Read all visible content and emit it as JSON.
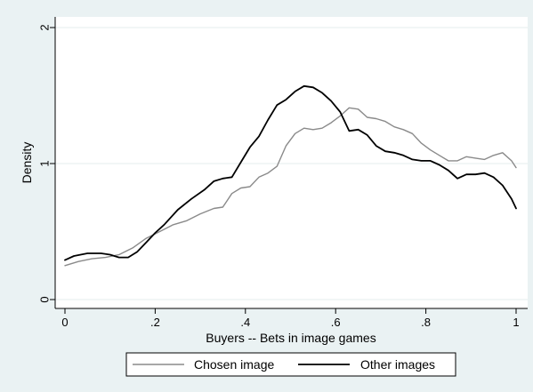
{
  "chart_data": {
    "type": "line",
    "xlabel": "Buyers -- Bets in image games",
    "ylabel": "Density",
    "xlim": [
      0,
      1
    ],
    "ylim": [
      0,
      2
    ],
    "x_ticks": [
      {
        "value": 0,
        "label": "0"
      },
      {
        "value": 0.2,
        "label": ".2"
      },
      {
        "value": 0.4,
        "label": ".4"
      },
      {
        "value": 0.6,
        "label": ".6"
      },
      {
        "value": 0.8,
        "label": ".8"
      },
      {
        "value": 1,
        "label": "1"
      }
    ],
    "y_ticks": [
      {
        "value": 0,
        "label": "0"
      },
      {
        "value": 1,
        "label": "1"
      },
      {
        "value": 2,
        "label": "2"
      }
    ],
    "grid": "horizontal",
    "legend_position": "bottom",
    "series": [
      {
        "name": "Chosen image",
        "color": "#8a8a8a",
        "x": [
          0,
          0.03,
          0.06,
          0.09,
          0.12,
          0.15,
          0.18,
          0.21,
          0.24,
          0.27,
          0.3,
          0.33,
          0.35,
          0.37,
          0.39,
          0.41,
          0.43,
          0.45,
          0.47,
          0.49,
          0.51,
          0.53,
          0.55,
          0.57,
          0.59,
          0.61,
          0.63,
          0.65,
          0.67,
          0.69,
          0.71,
          0.73,
          0.75,
          0.77,
          0.79,
          0.81,
          0.83,
          0.85,
          0.87,
          0.89,
          0.91,
          0.93,
          0.95,
          0.97,
          0.99,
          1.0
        ],
        "y": [
          0.25,
          0.28,
          0.3,
          0.31,
          0.33,
          0.38,
          0.45,
          0.5,
          0.55,
          0.58,
          0.63,
          0.67,
          0.68,
          0.78,
          0.82,
          0.83,
          0.9,
          0.93,
          0.98,
          1.13,
          1.22,
          1.26,
          1.25,
          1.26,
          1.3,
          1.35,
          1.41,
          1.4,
          1.34,
          1.33,
          1.31,
          1.27,
          1.25,
          1.22,
          1.15,
          1.1,
          1.06,
          1.02,
          1.02,
          1.05,
          1.04,
          1.03,
          1.06,
          1.08,
          1.02,
          0.97
        ]
      },
      {
        "name": "Other images",
        "color": "#000000",
        "x": [
          0,
          0.02,
          0.05,
          0.08,
          0.1,
          0.12,
          0.14,
          0.16,
          0.18,
          0.2,
          0.22,
          0.25,
          0.28,
          0.31,
          0.33,
          0.35,
          0.37,
          0.39,
          0.41,
          0.43,
          0.45,
          0.47,
          0.49,
          0.51,
          0.53,
          0.55,
          0.57,
          0.59,
          0.61,
          0.63,
          0.65,
          0.67,
          0.69,
          0.71,
          0.73,
          0.75,
          0.77,
          0.79,
          0.81,
          0.83,
          0.85,
          0.87,
          0.89,
          0.91,
          0.93,
          0.95,
          0.97,
          0.99,
          1.0
        ],
        "y": [
          0.29,
          0.32,
          0.34,
          0.34,
          0.33,
          0.31,
          0.31,
          0.35,
          0.42,
          0.49,
          0.55,
          0.66,
          0.74,
          0.81,
          0.87,
          0.89,
          0.9,
          1.01,
          1.12,
          1.2,
          1.32,
          1.43,
          1.47,
          1.53,
          1.57,
          1.56,
          1.52,
          1.46,
          1.38,
          1.24,
          1.25,
          1.21,
          1.13,
          1.09,
          1.08,
          1.06,
          1.03,
          1.02,
          1.02,
          0.99,
          0.95,
          0.89,
          0.92,
          0.92,
          0.93,
          0.9,
          0.84,
          0.74,
          0.67
        ]
      }
    ]
  }
}
